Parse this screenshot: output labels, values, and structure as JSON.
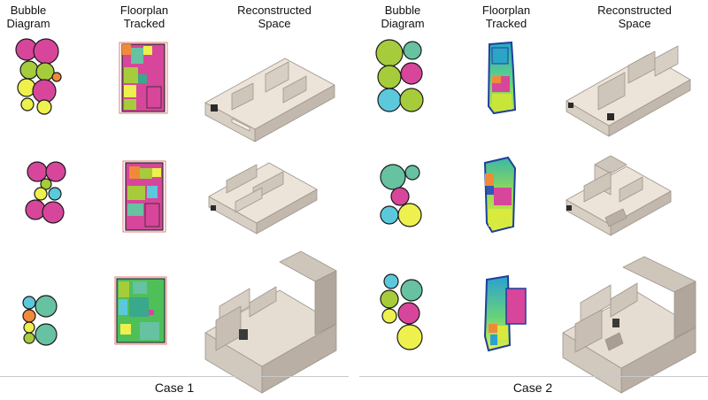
{
  "headers": {
    "case1": {
      "bubble": [
        "Bubble",
        "Diagram"
      ],
      "floorplan": [
        "Floorplan",
        "Tracked"
      ],
      "space": [
        "Reconstructed",
        "Space"
      ]
    },
    "case2": {
      "bubble": [
        "Bubble",
        "Diagram"
      ],
      "floorplan": [
        "Floorplan",
        "Tracked"
      ],
      "space": [
        "Reconstructed",
        "Space"
      ]
    }
  },
  "captions": {
    "case1": "Case 1",
    "case2": "Case 2"
  },
  "colors": {
    "magenta": "#d7469a",
    "lime": "#a6cc3c",
    "yellow": "#eef04d",
    "teal": "#66c2a0",
    "cyan": "#5cc8dc",
    "orange": "#f08a3a",
    "green": "#4fbf5a",
    "blue": "#2f56b8",
    "model_top": "#ece3d9",
    "model_left": "#d8cfc4",
    "model_right": "#c2b8ad",
    "model_line": "#9e958b"
  }
}
